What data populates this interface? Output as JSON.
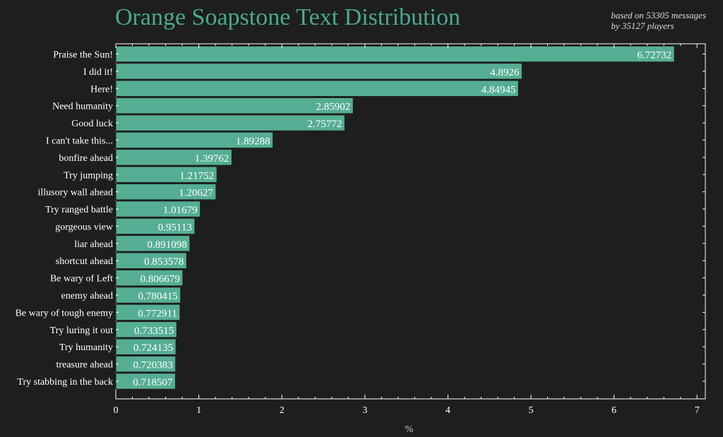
{
  "chart_data": {
    "type": "bar",
    "orientation": "horizontal",
    "title": "Orange Soapstone Text Distribution",
    "subtitle_lines": [
      "based on 53305 messages",
      "by 35127 players"
    ],
    "xlabel": "%",
    "ylabel": "",
    "xlim": [
      0,
      7.1
    ],
    "xticks": [
      0,
      1,
      2,
      3,
      4,
      5,
      6,
      7
    ],
    "categories": [
      "Praise the Sun!",
      "I did it!",
      "Here!",
      "Need humanity",
      "Good luck",
      "I can't take this...",
      "bonfire ahead",
      "Try jumping",
      "illusory wall ahead",
      "Try ranged battle",
      "gorgeous view",
      "liar ahead",
      "shortcut ahead",
      "Be wary of Left",
      "enemy ahead",
      "Be wary of tough enemy",
      "Try luring it out",
      "Try humanity",
      "treasure ahead",
      "Try stabbing in the back"
    ],
    "values": [
      6.72732,
      4.8926,
      4.84945,
      2.85902,
      2.75772,
      1.89288,
      1.39762,
      1.21752,
      1.20627,
      1.01679,
      0.95113,
      0.891098,
      0.853578,
      0.806679,
      0.780415,
      0.772911,
      0.733515,
      0.724135,
      0.720383,
      0.718507
    ],
    "value_labels": [
      "6.72732",
      "4.8926",
      "4.84945",
      "2.85902",
      "2.75772",
      "1.89288",
      "1.39762",
      "1.21752",
      "1.20627",
      "1.01679",
      "0.95113",
      "0.891098",
      "0.853578",
      "0.806679",
      "0.780415",
      "0.772911",
      "0.733515",
      "0.724135",
      "0.720383",
      "0.718507"
    ],
    "grid": false,
    "colors": {
      "bar": "#55ae94",
      "bar_edge": "#1e1e1e",
      "title": "#4aa890",
      "background": "#1e1e1e",
      "axes": "#ffffff"
    }
  }
}
